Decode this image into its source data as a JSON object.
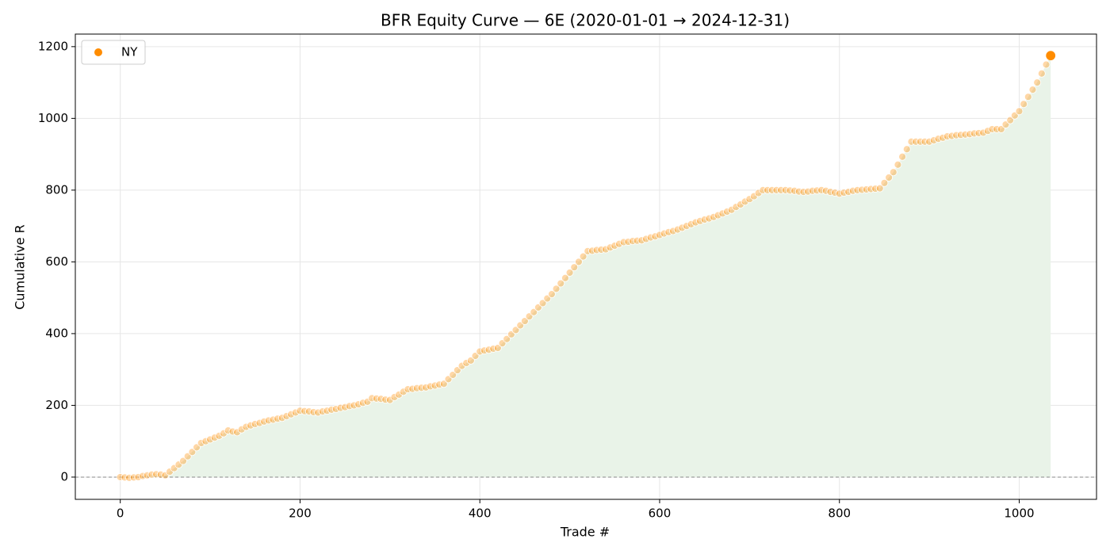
{
  "chart_data": {
    "type": "scatter",
    "title": "BFR Equity Curve — 6E  (2020-01-01 → 2024-12-31)",
    "x_label": "Trade #",
    "y_label": "Cumulative R",
    "xlim": [
      -50,
      1086
    ],
    "ylim": [
      -62,
      1235
    ],
    "xticks": [
      0,
      200,
      400,
      600,
      800,
      1000
    ],
    "yticks": [
      0,
      200,
      400,
      600,
      800,
      1000,
      1200
    ],
    "grid": true,
    "legend": "upper left",
    "reference_line": 0,
    "area_color": "#e9f3e8",
    "series": [
      {
        "name": "NY",
        "color": "#ff8c00",
        "x": [
          0,
          5,
          10,
          15,
          20,
          25,
          30,
          35,
          40,
          45,
          50,
          55,
          60,
          65,
          70,
          75,
          80,
          85,
          90,
          95,
          100,
          105,
          110,
          115,
          120,
          125,
          130,
          135,
          140,
          145,
          150,
          155,
          160,
          165,
          170,
          175,
          180,
          185,
          190,
          195,
          200,
          205,
          210,
          215,
          220,
          225,
          230,
          235,
          240,
          245,
          250,
          255,
          260,
          265,
          270,
          275,
          280,
          285,
          290,
          295,
          300,
          305,
          310,
          315,
          320,
          325,
          330,
          335,
          340,
          345,
          350,
          355,
          360,
          365,
          370,
          375,
          380,
          385,
          390,
          395,
          400,
          405,
          410,
          415,
          420,
          425,
          430,
          435,
          440,
          445,
          450,
          455,
          460,
          465,
          470,
          475,
          480,
          485,
          490,
          495,
          500,
          505,
          510,
          515,
          520,
          525,
          530,
          535,
          540,
          545,
          550,
          555,
          560,
          565,
          570,
          575,
          580,
          585,
          590,
          595,
          600,
          605,
          610,
          615,
          620,
          625,
          630,
          635,
          640,
          645,
          650,
          655,
          660,
          665,
          670,
          675,
          680,
          685,
          690,
          695,
          700,
          705,
          710,
          715,
          720,
          725,
          730,
          735,
          740,
          745,
          750,
          755,
          760,
          765,
          770,
          775,
          780,
          785,
          790,
          795,
          800,
          805,
          810,
          815,
          820,
          825,
          830,
          835,
          840,
          845,
          850,
          855,
          860,
          865,
          870,
          875,
          880,
          885,
          890,
          895,
          900,
          905,
          910,
          915,
          920,
          925,
          930,
          935,
          940,
          945,
          950,
          955,
          960,
          965,
          970,
          975,
          980,
          985,
          990,
          995,
          1000,
          1005,
          1010,
          1015,
          1020,
          1025,
          1030,
          1035
        ],
        "values": [
          0,
          -1,
          -2,
          -1,
          0,
          3,
          5,
          7,
          8,
          7,
          5,
          15,
          25,
          35,
          45,
          58,
          70,
          83,
          95,
          100,
          105,
          110,
          115,
          122,
          130,
          127,
          125,
          133,
          140,
          144,
          148,
          151,
          155,
          158,
          160,
          163,
          165,
          170,
          175,
          180,
          185,
          184,
          183,
          181,
          180,
          183,
          185,
          188,
          190,
          193,
          195,
          198,
          200,
          203,
          207,
          210,
          220,
          219,
          218,
          216,
          215,
          223,
          230,
          238,
          245,
          246,
          248,
          249,
          250,
          253,
          255,
          258,
          260,
          273,
          285,
          298,
          310,
          318,
          325,
          338,
          350,
          353,
          355,
          358,
          360,
          373,
          385,
          398,
          410,
          423,
          435,
          448,
          460,
          473,
          485,
          498,
          510,
          525,
          540,
          555,
          570,
          585,
          600,
          615,
          630,
          631,
          633,
          634,
          635,
          640,
          645,
          650,
          655,
          656,
          658,
          659,
          660,
          664,
          668,
          671,
          675,
          679,
          683,
          686,
          690,
          695,
          700,
          705,
          710,
          714,
          718,
          721,
          725,
          730,
          735,
          740,
          745,
          753,
          760,
          768,
          775,
          783,
          792,
          800,
          800,
          800,
          800,
          800,
          800,
          799,
          798,
          796,
          795,
          796,
          798,
          799,
          800,
          798,
          795,
          793,
          790,
          793,
          795,
          798,
          800,
          801,
          802,
          803,
          804,
          805,
          820,
          835,
          850,
          871,
          893,
          914,
          935,
          935,
          935,
          935,
          935,
          939,
          943,
          946,
          950,
          951,
          953,
          954,
          955,
          956,
          958,
          959,
          960,
          965,
          970,
          970,
          970,
          983,
          995,
          1008,
          1020,
          1040,
          1060,
          1080,
          1100,
          1125,
          1150,
          1175
        ]
      }
    ]
  }
}
